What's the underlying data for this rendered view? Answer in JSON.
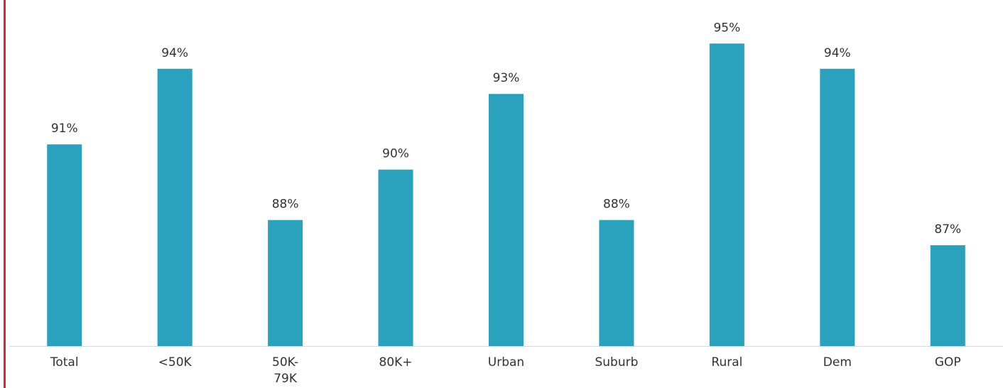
{
  "chart_data": {
    "type": "bar",
    "categories": [
      "Total",
      "<50K",
      "50K-79K",
      "80K+",
      "Urban",
      "Suburb",
      "Rural",
      "Dem",
      "GOP"
    ],
    "tick_labels": [
      [
        "Total"
      ],
      [
        "<50K"
      ],
      [
        "50K-",
        "79K"
      ],
      [
        "80K+"
      ],
      [
        "Urban"
      ],
      [
        "Suburb"
      ],
      [
        "Rural"
      ],
      [
        "Dem"
      ],
      [
        "GOP"
      ]
    ],
    "values": [
      91,
      94,
      88,
      90,
      93,
      88,
      95,
      94,
      87
    ],
    "data_labels": [
      "91%",
      "94%",
      "88%",
      "90%",
      "93%",
      "88%",
      "95%",
      "94%",
      "87%"
    ],
    "title": "",
    "xlabel": "",
    "ylabel": "",
    "ylim": [
      83,
      95.6
    ],
    "grid": false,
    "legend": "none"
  },
  "colors": {
    "bar": "#2aa1bd",
    "axis": "#d9d9d9",
    "text": "#333333",
    "accent_rule": "#d9262e"
  }
}
